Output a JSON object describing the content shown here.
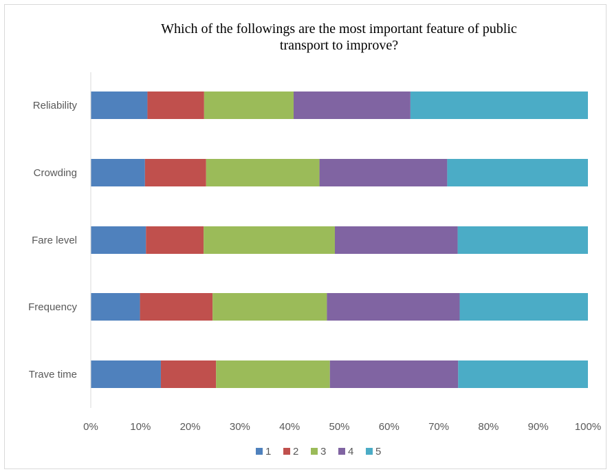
{
  "chart_data": {
    "type": "bar",
    "orientation": "horizontal",
    "stacked": "percent",
    "title": "Which of the followings  are the most important  feature of public\ntransport to improve?",
    "categories": [
      "Reliability",
      "Crowding",
      "Fare level",
      "Frequency",
      "Trave time"
    ],
    "x_ticks": [
      "0%",
      "10%",
      "20%",
      "30%",
      "40%",
      "50%",
      "60%",
      "70%",
      "80%",
      "90%",
      "100%"
    ],
    "xlim": [
      0,
      100
    ],
    "grid": false,
    "legend_position": "bottom",
    "series": [
      {
        "name": "1",
        "color": "#4f81bd",
        "values": [
          11.4,
          10.9,
          11.1,
          9.9,
          14.1
        ]
      },
      {
        "name": "2",
        "color": "#c0504d",
        "values": [
          11.4,
          12.3,
          11.6,
          14.6,
          11.1
        ]
      },
      {
        "name": "3",
        "color": "#9bbb59",
        "values": [
          18.0,
          22.8,
          26.4,
          23.0,
          22.9
        ]
      },
      {
        "name": "4",
        "color": "#8064a2",
        "values": [
          23.5,
          25.7,
          24.7,
          26.7,
          25.8
        ]
      },
      {
        "name": "5",
        "color": "#4bacc6",
        "values": [
          35.7,
          28.3,
          26.2,
          25.8,
          26.1
        ]
      }
    ]
  }
}
